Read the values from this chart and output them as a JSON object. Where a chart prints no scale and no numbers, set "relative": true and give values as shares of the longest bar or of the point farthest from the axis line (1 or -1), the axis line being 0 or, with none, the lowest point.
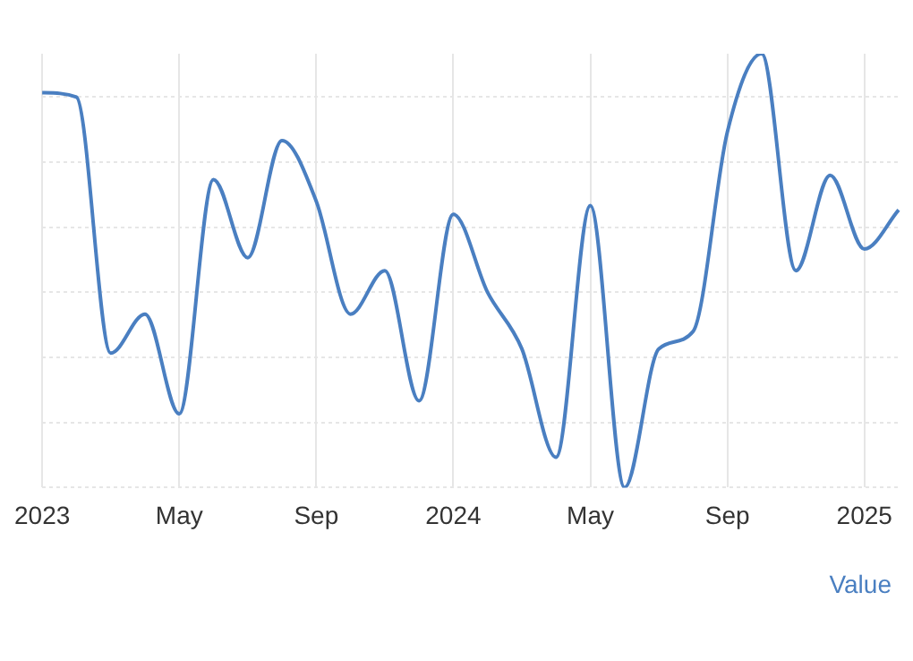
{
  "chart_data": {
    "type": "line",
    "relative": true,
    "grid": true,
    "legend": "bottom right",
    "marker": "none",
    "line_style": "solid",
    "categories": [
      "2023",
      null,
      null,
      null,
      "May",
      null,
      null,
      null,
      "Sep",
      null,
      null,
      null,
      "2024",
      null,
      null,
      null,
      "May",
      null,
      null,
      null,
      "Sep",
      null,
      null,
      null,
      "2025",
      null
    ],
    "series": [
      {
        "name": "Value",
        "color": "#4a7fc1",
        "values": [
          0.91,
          0.9,
          0.31,
          0.4,
          0.17,
          0.71,
          0.53,
          0.8,
          0.66,
          0.4,
          0.5,
          0.2,
          0.63,
          0.45,
          0.32,
          0.07,
          0.65,
          0,
          0.32,
          0.36,
          0.82,
          1,
          0.5,
          0.72,
          0.55,
          0.64
        ]
      }
    ]
  }
}
